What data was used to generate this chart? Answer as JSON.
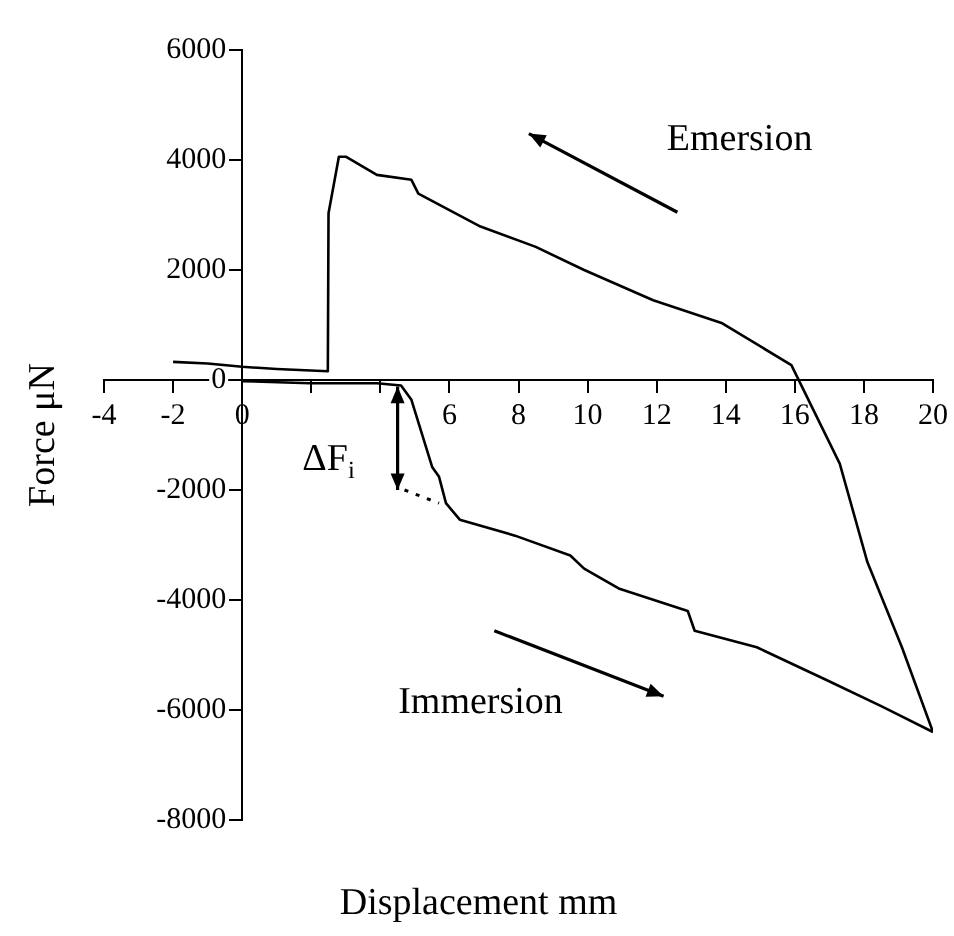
{
  "chart_data": {
    "type": "line",
    "xlabel": "Displacement mm",
    "ylabel": "Force μN",
    "xlim": [
      -4,
      20
    ],
    "ylim": [
      -8000,
      6000
    ],
    "xticks": [
      -4,
      -2,
      0,
      {
        "value": 2,
        "label": null
      },
      {
        "value": 4,
        "label": null
      },
      6,
      8,
      10,
      12,
      14,
      16,
      18,
      20
    ],
    "yticks": [
      -8000,
      -6000,
      -4000,
      -2000,
      0,
      2000,
      4000,
      6000
    ],
    "grid": false,
    "legend": false,
    "marker": "none",
    "series": [
      {
        "color": "#000000",
        "x": [
          -2,
          -1,
          0,
          1,
          2.48,
          2.5,
          2.8,
          3.0,
          3.9,
          4.9,
          5.1,
          6.9,
          8.5,
          9.9,
          11.9,
          13.9,
          15.9,
          17.3,
          18.1,
          19.1,
          20
        ],
        "values": [
          330,
          300,
          240,
          200,
          160,
          3030,
          4060,
          4060,
          3730,
          3640,
          3390,
          2790,
          2420,
          2000,
          1450,
          1030,
          270,
          -1520,
          -3310,
          -4860,
          -6400
        ]
      },
      {
        "color": "#000000",
        "x": [
          0,
          1.96,
          3.9,
          4.6,
          4.9,
          5.5,
          5.7,
          5.9,
          6.3,
          7.9,
          9.5,
          9.9,
          10.9,
          12.9,
          13.1,
          14.9,
          16.9,
          18.5,
          20
        ],
        "values": [
          -20,
          -60,
          -60,
          -100,
          -360,
          -1580,
          -1760,
          -2240,
          -2540,
          -2830,
          -3190,
          -3430,
          -3790,
          -4200,
          -4560,
          -4860,
          -5450,
          -5930,
          -6400
        ]
      },
      {
        "color": "#000000",
        "line_style": "dotted",
        "x": [
          4.7,
          5.7
        ],
        "values": [
          -2000,
          -2240
        ]
      }
    ],
    "annotations": [
      "Emersion",
      "Immersion",
      "ΔF$_{i}$"
    ]
  }
}
